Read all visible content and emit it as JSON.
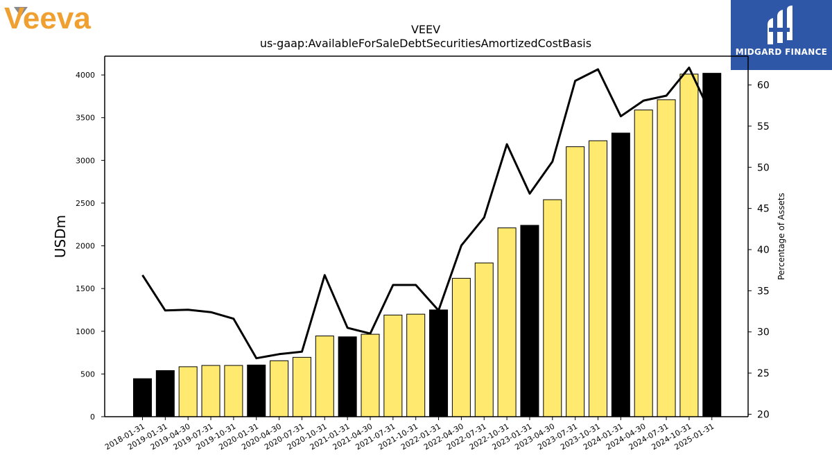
{
  "header": {
    "company_logo_text": "Veeva",
    "brand_name": "MIDGARD FINANCE"
  },
  "colors": {
    "bar_quarter": "#FFE96E",
    "bar_year_end": "#000000",
    "line": "#000000",
    "logo_orange": "#F0A030",
    "logo_gray": "#8A8A8A",
    "brand_blue": "#2F57A8"
  },
  "chart_data": {
    "type": "bar",
    "title": "VEEV",
    "subtitle": "us-gaap:AvailableForSaleDebtSecuritiesAmortizedCostBasis",
    "ylabel": "USDm",
    "y2label": "Percentage of Assets",
    "ylim": [
      0,
      4220
    ],
    "y2lim": [
      19.7,
      63.5
    ],
    "yticks": [
      0,
      500,
      1000,
      1500,
      2000,
      2500,
      3000,
      3500,
      4000
    ],
    "y2ticks": [
      20,
      25,
      30,
      35,
      40,
      45,
      50,
      55,
      60
    ],
    "categories": [
      "2018-01-31",
      "2019-01-31",
      "2019-04-30",
      "2019-07-31",
      "2019-10-31",
      "2020-01-31",
      "2020-04-30",
      "2020-07-31",
      "2020-10-31",
      "2021-01-31",
      "2021-04-30",
      "2021-07-31",
      "2021-10-31",
      "2022-01-31",
      "2022-04-30",
      "2022-07-31",
      "2022-10-31",
      "2023-01-31",
      "2023-04-30",
      "2023-07-31",
      "2023-10-31",
      "2024-01-31",
      "2024-04-30",
      "2024-07-31",
      "2024-10-31",
      "2025-01-31"
    ],
    "series": [
      {
        "kind": "bar",
        "values": [
          445,
          540,
          585,
          600,
          600,
          605,
          655,
          695,
          945,
          935,
          965,
          1190,
          1200,
          1250,
          1620,
          1800,
          2210,
          2240,
          2540,
          3160,
          3230,
          3320,
          3590,
          3710,
          4010,
          4020
        ],
        "year_end": [
          true,
          true,
          false,
          false,
          false,
          true,
          false,
          false,
          false,
          true,
          false,
          false,
          false,
          true,
          false,
          false,
          false,
          true,
          false,
          false,
          false,
          true,
          false,
          false,
          false,
          true
        ]
      },
      {
        "kind": "line",
        "axis": "right",
        "values": [
          36.9,
          32.6,
          32.7,
          32.4,
          31.6,
          26.8,
          27.3,
          27.6,
          36.9,
          30.5,
          29.8,
          35.7,
          35.7,
          32.6,
          40.5,
          43.9,
          52.8,
          46.8,
          50.7,
          60.5,
          61.9,
          56.2,
          58.1,
          58.7,
          62.1,
          56.2
        ]
      }
    ]
  }
}
